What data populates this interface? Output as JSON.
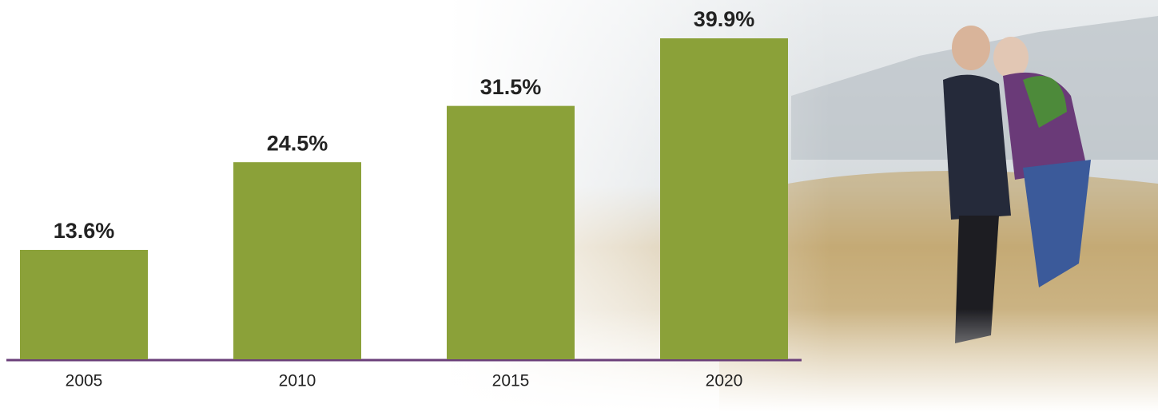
{
  "chart_data": {
    "type": "bar",
    "categories": [
      "2005",
      "2010",
      "2015",
      "2020"
    ],
    "values": [
      13.6,
      24.5,
      31.5,
      39.9
    ],
    "value_labels": [
      "13.6%",
      "24.5%",
      "31.5%",
      "39.9%"
    ],
    "color": "#8ba139"
  }
}
